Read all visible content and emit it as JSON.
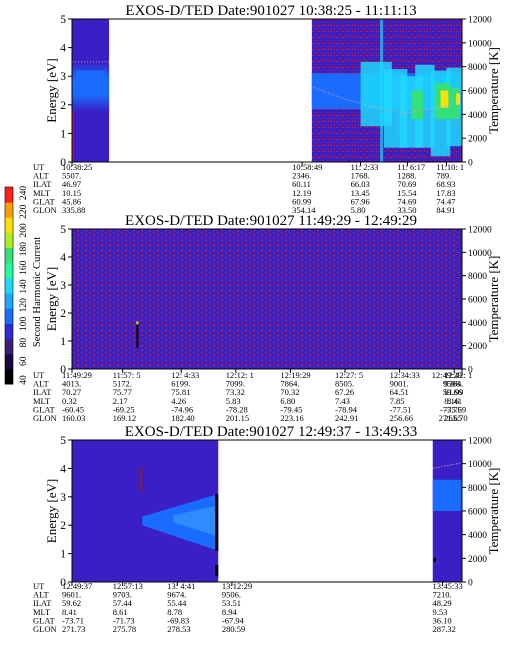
{
  "colors": {
    "background_low": "#3a1fc4",
    "background_noise": "#c21a3a",
    "band_blue": "#1a6cff",
    "band_cyan": "#1fd8ff",
    "band_green": "#33e07a",
    "band_yellow": "#ffe000",
    "band_red": "#ff2020",
    "gap_white": "#ffffff",
    "dropout_black": "#000000"
  },
  "colorbar": {
    "label": "Second Harmonic Current",
    "ticks": [
      "40",
      "60",
      "80",
      "100",
      "120",
      "140",
      "160",
      "180",
      "200",
      "220",
      "240"
    ],
    "colors": [
      "#000000",
      "#1a0a3a",
      "#3a1f7a",
      "#2a2ad8",
      "#1a6cff",
      "#1fa8ff",
      "#1fd8ff",
      "#1fffa0",
      "#33e07a",
      "#a8f020",
      "#ffe000",
      "#ffa000",
      "#ff2020"
    ]
  },
  "chart_data": [
    {
      "type": "heatmap",
      "title": "EXOS-D/TED   Date:901027   10:38:25 - 11:11:13",
      "ylabel": "Energy [eV]",
      "ylabel_right": "Temperature [K]",
      "ylim": [
        0,
        5
      ],
      "y2lim": [
        0,
        12000
      ],
      "yticks": [
        "0",
        "1",
        "2",
        "3",
        "4",
        "5"
      ],
      "y2ticks": [
        "0",
        "2000",
        "4000",
        "6000",
        "8000",
        "10000",
        "12000"
      ],
      "data_gap": true,
      "ephemeris_labels": [
        "UT",
        "ALT",
        "ILAT",
        "MLT",
        "GLAT",
        "GLON"
      ],
      "ephemeris": [
        {
          "UT": "10:38:25",
          "ALT": "5507.",
          "ILAT": "46.97",
          "MLT": "10.15",
          "GLAT": "45.86",
          "GLON": "335.88"
        },
        {
          "UT": "10:58:49",
          "ALT": "2346.",
          "ILAT": "60.11",
          "MLT": "12.19",
          "GLAT": "60.99",
          "GLON": "354.14"
        },
        {
          "UT": "11: 2:33",
          "ALT": "1768.",
          "ILAT": "66.03",
          "MLT": "13.45",
          "GLAT": "67.96",
          "GLON": "5.80"
        },
        {
          "UT": "11: 6:17",
          "ALT": "1288.",
          "ILAT": "70.69",
          "MLT": "15.54",
          "GLAT": "74.69",
          "GLON": "33.50"
        },
        {
          "UT": "11:10: 1",
          "ALT": "789.",
          "ILAT": "68.93",
          "MLT": "17.83",
          "GLAT": "74.47",
          "GLON": "84.91"
        }
      ]
    },
    {
      "type": "heatmap",
      "title": "EXOS-D/TED   Date:901027   11:49:29 - 12:49:29",
      "ylabel": "Energy [eV]",
      "ylabel_right": "Temperature [K]",
      "ylim": [
        0,
        5
      ],
      "y2lim": [
        0,
        12000
      ],
      "yticks": [
        "0",
        "1",
        "2",
        "3",
        "4",
        "5"
      ],
      "y2ticks": [
        "0",
        "2000",
        "4000",
        "6000",
        "8000",
        "10000",
        "12000"
      ],
      "ephemeris_labels": [
        "UT",
        "ALT",
        "ILAT",
        "MLT",
        "GLAT",
        "GLON"
      ],
      "ephemeris": [
        {
          "UT": "11:49:29",
          "ALT": "4013.",
          "ILAT": "70.27",
          "MLT": "0.32",
          "GLAT": "-60.45",
          "GLON": "160.03"
        },
        {
          "UT": "11:57: 5",
          "ALT": "5172.",
          "ILAT": "75.77",
          "MLT": "2.17",
          "GLAT": "-69.25",
          "GLON": "169.12"
        },
        {
          "UT": "12: 4:33",
          "ALT": "6199.",
          "ILAT": "75.81",
          "MLT": "4.26",
          "GLAT": "-74.96",
          "GLON": "182.40"
        },
        {
          "UT": "12:12: 1",
          "ALT": "7099.",
          "ILAT": "73.32",
          "MLT": "5.83",
          "GLAT": "-78.28",
          "GLON": "201.15"
        },
        {
          "UT": "12:19:29",
          "ALT": "7864.",
          "ILAT": "70.32",
          "MLT": "6.80",
          "GLAT": "-79.45",
          "GLON": "223.16"
        },
        {
          "UT": "12:27: 5",
          "ALT": "8505.",
          "ILAT": "67.26",
          "MLT": "7.43",
          "GLAT": "-78.94",
          "GLON": "242.91"
        },
        {
          "UT": "12:34:33",
          "ALT": "9001.",
          "ILAT": "64.51",
          "MLT": "7.85",
          "GLAT": "-77.51",
          "GLON": "256.66"
        },
        {
          "UT": "12:42: 1",
          "ALT": "9364.",
          "ILAT": "61.99",
          "MLT": "8.16",
          "GLAT": "-75.69",
          "GLON": "265.70"
        },
        {
          "UT": "12:49:29",
          "ALT": "9598.",
          "ILAT": "59.66",
          "MLT": "8.41",
          "GLAT": "-73.75",
          "GLON": "271.65"
        }
      ]
    },
    {
      "type": "heatmap",
      "title": "EXOS-D/TED   Date:901027   12:49:37 - 13:49:33",
      "ylabel": "Energy [eV]",
      "ylabel_right": "Temperature [K]",
      "ylim": [
        0,
        5
      ],
      "y2lim": [
        0,
        12000
      ],
      "yticks": [
        "0",
        "1",
        "2",
        "3",
        "4",
        "5"
      ],
      "y2ticks": [
        "0",
        "2000",
        "4000",
        "6000",
        "8000",
        "10000",
        "12000"
      ],
      "data_gap": true,
      "ephemeris_labels": [
        "UT",
        "ALT",
        "ILAT",
        "MLT",
        "GLAT",
        "GLON"
      ],
      "ephemeris": [
        {
          "UT": "12:49:37",
          "ALT": "9601.",
          "ILAT": "59.62",
          "MLT": "8.41",
          "GLAT": "-73.71",
          "GLON": "271.73"
        },
        {
          "UT": "12:57:13",
          "ALT": "9703.",
          "ILAT": "57.44",
          "MLT": "8.61",
          "GLAT": "-71.73",
          "GLON": "275.78"
        },
        {
          "UT": "13: 4:41",
          "ALT": "9674.",
          "ILAT": "55.44",
          "MLT": "8.78",
          "GLAT": "-69.83",
          "GLON": "278.53"
        },
        {
          "UT": "13:12:29",
          "ALT": "9506.",
          "ILAT": "53.51",
          "MLT": "8.94",
          "GLAT": "-67.94",
          "GLON": "280.59"
        },
        {
          "UT": "13:45:33",
          "ALT": "7210.",
          "ILAT": "48.29",
          "MLT": "9.53",
          "GLAT": "36.10",
          "GLON": "287.32"
        }
      ]
    }
  ]
}
